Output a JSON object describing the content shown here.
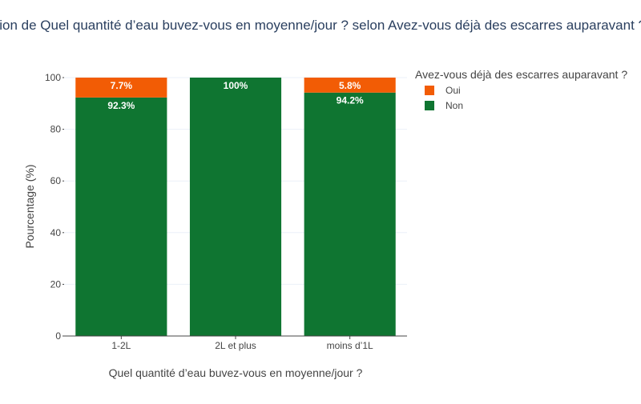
{
  "chart_data": {
    "type": "bar",
    "stacked": true,
    "title": "Répartition de Quel quantité d’eau buvez-vous en moyenne/jour ? selon Avez-vous déjà des escarres auparavant ?",
    "xlabel": "Quel quantité d’eau buvez-vous en moyenne/jour ?",
    "ylabel": "Pourcentage (%)",
    "ylim": [
      0,
      100
    ],
    "yticks": [
      0,
      20,
      40,
      60,
      80,
      100
    ],
    "categories": [
      "1-2L",
      "2L et plus",
      "moins d’1L"
    ],
    "legend": {
      "title": "Avez-vous déjà des escarres auparavant ?",
      "placement": "top-right"
    },
    "series": [
      {
        "name": "Non",
        "color": "#0f7531",
        "values": [
          92.3,
          100,
          94.2
        ],
        "labels": [
          "92.3%",
          "100%",
          "94.2%"
        ]
      },
      {
        "name": "Oui",
        "color": "#f25c05",
        "values": [
          7.7,
          0,
          5.8
        ],
        "labels": [
          "7.7%",
          "",
          "5.8%"
        ]
      }
    ],
    "legend_order": [
      "Oui",
      "Non"
    ],
    "grid": true
  }
}
